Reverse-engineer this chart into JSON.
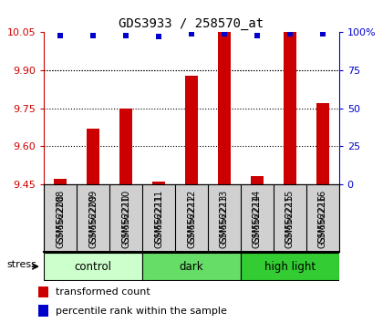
{
  "title": "GDS3933 / 258570_at",
  "samples": [
    "GSM562208",
    "GSM562209",
    "GSM562210",
    "GSM562211",
    "GSM562212",
    "GSM562213",
    "GSM562214",
    "GSM562215",
    "GSM562216"
  ],
  "transformed_counts": [
    9.47,
    9.67,
    9.75,
    9.46,
    9.88,
    10.05,
    9.48,
    10.05,
    9.77
  ],
  "percentile_ranks": [
    98,
    98,
    98,
    97,
    99,
    99,
    98,
    99,
    99
  ],
  "ylim_left": [
    9.45,
    10.05
  ],
  "ylim_right": [
    0,
    100
  ],
  "yticks_left": [
    9.45,
    9.6,
    9.75,
    9.9,
    10.05
  ],
  "yticks_right": [
    0,
    25,
    50,
    75,
    100
  ],
  "bar_color": "#cc0000",
  "dot_color": "#0000cc",
  "groups": [
    {
      "label": "control",
      "indices": [
        0,
        1,
        2
      ],
      "color": "#ccffcc"
    },
    {
      "label": "dark",
      "indices": [
        3,
        4,
        5
      ],
      "color": "#66dd66"
    },
    {
      "label": "high light",
      "indices": [
        6,
        7,
        8
      ],
      "color": "#33cc33"
    }
  ],
  "stress_label": "stress",
  "base_value": 9.45,
  "bar_width": 0.4,
  "grid_color": "#000000",
  "tick_label_color_left": "#cc0000",
  "tick_label_color_right": "#0000cc",
  "sample_box_color": "#d0d0d0",
  "plot_bg_color": "#ffffff"
}
